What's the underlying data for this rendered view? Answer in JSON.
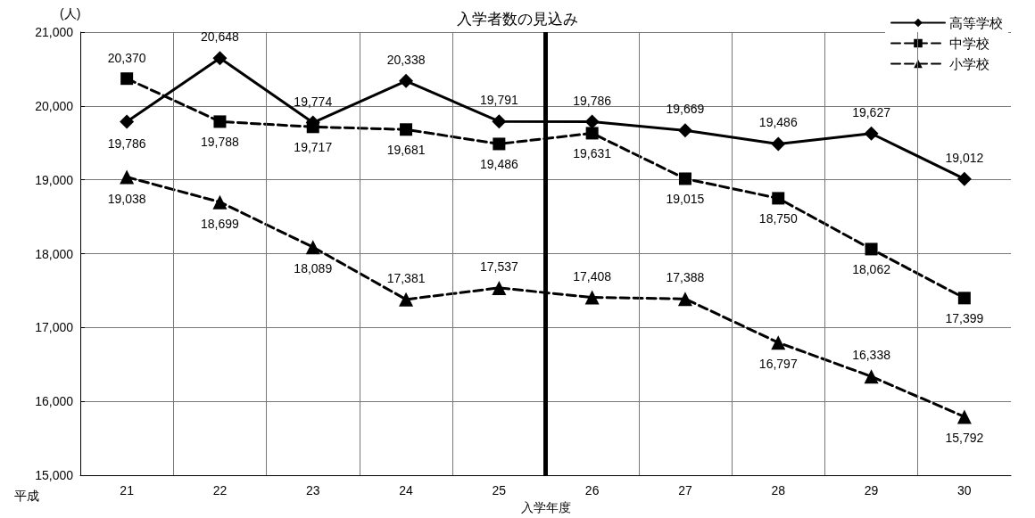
{
  "chart_data": {
    "type": "line",
    "title": "入学者数の見込み",
    "xlabel": "入学年度",
    "ylabel": "(人)",
    "annotations": [
      "平成"
    ],
    "x": [
      21,
      22,
      23,
      24,
      25,
      26,
      27,
      28,
      29,
      30
    ],
    "series": [
      {
        "name": "高等学校",
        "color": "#000000",
        "marker": "diamond",
        "line_style": "solid",
        "values": [
          19786,
          20648,
          19774,
          20338,
          19791,
          19786,
          19669,
          19486,
          19627,
          19012
        ],
        "value_labels": [
          "19,786",
          "20,648",
          "19,774",
          "20,338",
          "19,791",
          "19,786",
          "19,669",
          "19,486",
          "19,627",
          "19,012"
        ]
      },
      {
        "name": "中学校",
        "color": "#000000",
        "marker": "square",
        "line_style": "dashed",
        "values": [
          20370,
          19788,
          19717,
          19681,
          19486,
          19631,
          19015,
          18750,
          18062,
          17399
        ],
        "value_labels": [
          "20,370",
          "19,788",
          "19,717",
          "19,681",
          "19,486",
          "19,631",
          "19,015",
          "18,750",
          "18,062",
          "17,399"
        ]
      },
      {
        "name": "小学校",
        "color": "#000000",
        "marker": "triangle",
        "line_style": "dashed",
        "values": [
          19038,
          18699,
          18089,
          17381,
          17537,
          17408,
          17388,
          16797,
          16338,
          15792
        ],
        "value_labels": [
          "19,038",
          "18,699",
          "18,089",
          "17,381",
          "17,537",
          "17,408",
          "17,388",
          "16,797",
          "16,338",
          "15,792"
        ]
      }
    ],
    "xlim": [
      20.5,
      30.5
    ],
    "xticks": [
      21,
      22,
      23,
      24,
      25,
      26,
      27,
      28,
      29,
      30,
      {
        "value": 21.5,
        "label": null
      },
      {
        "value": 22.5,
        "label": null
      },
      {
        "value": 23.5,
        "label": null
      },
      {
        "value": 24.5,
        "label": null
      },
      {
        "value": 26.5,
        "label": null
      },
      {
        "value": 27.5,
        "label": null
      },
      {
        "value": 28.5,
        "label": null
      },
      {
        "value": 29.5,
        "label": null
      }
    ],
    "ylim": [
      15000,
      21000
    ],
    "yticks": [
      {
        "value": 15000,
        "label": "15,000"
      },
      {
        "value": 16000,
        "label": "16,000"
      },
      {
        "value": 17000,
        "label": "17,000"
      },
      {
        "value": 18000,
        "label": "18,000"
      },
      {
        "value": 19000,
        "label": "19,000"
      },
      {
        "value": 20000,
        "label": "20,000"
      },
      {
        "value": 21000,
        "label": "21,000"
      }
    ],
    "ref_lines": [
      {
        "axis": "x",
        "value": 25.5,
        "color": "#000000"
      }
    ],
    "grid": true,
    "legend": "top right"
  }
}
